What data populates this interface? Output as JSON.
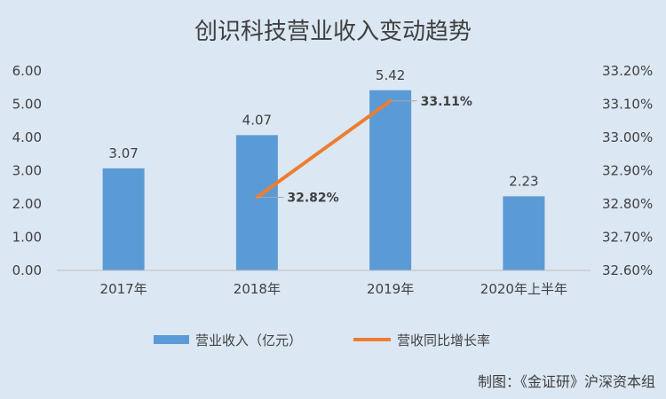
{
  "chart_data": {
    "type": "bar",
    "title": "创识科技营业收入变动趋势",
    "categories": [
      "2017年",
      "2018年",
      "2019年",
      "2020年上半年"
    ],
    "series": [
      {
        "name": "营业收入（亿元）",
        "type": "bar",
        "axis": "left",
        "color": "#5b9bd5",
        "values": [
          3.07,
          4.07,
          5.42,
          2.23
        ],
        "labels": [
          "3.07",
          "4.07",
          "5.42",
          "2.23"
        ]
      },
      {
        "name": "营收同比增长率",
        "type": "line",
        "axis": "right",
        "color": "#ed7d31",
        "values": [
          null,
          32.82,
          33.11,
          null
        ],
        "labels": [
          "",
          "32.82%",
          "33.11%",
          ""
        ]
      }
    ],
    "ylim_left": [
      0,
      6
    ],
    "ylim_right": [
      32.6,
      33.2
    ],
    "yticks_left": [
      "0.00",
      "1.00",
      "2.00",
      "3.00",
      "4.00",
      "5.00",
      "6.00"
    ],
    "yticks_right": [
      "32.60%",
      "32.70%",
      "32.80%",
      "32.90%",
      "33.00%",
      "33.10%",
      "33.20%"
    ],
    "grid": false,
    "legend": "bottom"
  },
  "credit": "制图：《金证研》沪深资本组"
}
